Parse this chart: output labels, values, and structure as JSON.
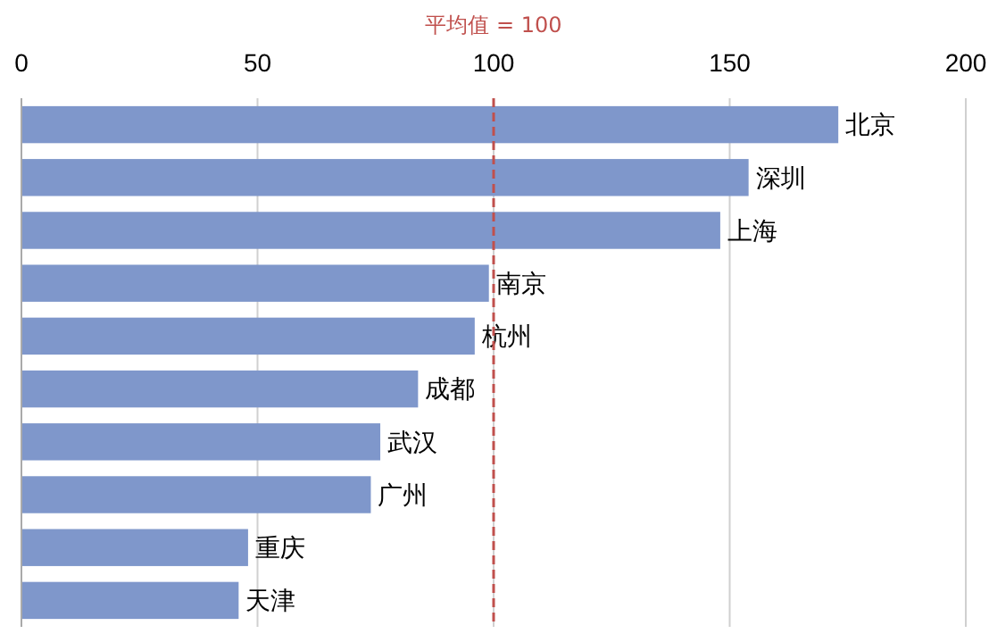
{
  "chart_data": {
    "type": "bar",
    "orientation": "horizontal",
    "categories": [
      "北京",
      "深圳",
      "上海",
      "南京",
      "杭州",
      "成都",
      "武汉",
      "广州",
      "重庆",
      "天津"
    ],
    "values": [
      173,
      154,
      148,
      99,
      96,
      84,
      76,
      74,
      48,
      46
    ],
    "color": "#7f97cb",
    "xlim": [
      0,
      200
    ],
    "xticks": [
      0,
      50,
      100,
      150,
      200
    ],
    "grid": "x",
    "ref_lines": [
      {
        "axis": "x",
        "value": 100,
        "label": "平均值 = 100",
        "color": "#c0504d",
        "line_style": "dashed"
      }
    ]
  }
}
